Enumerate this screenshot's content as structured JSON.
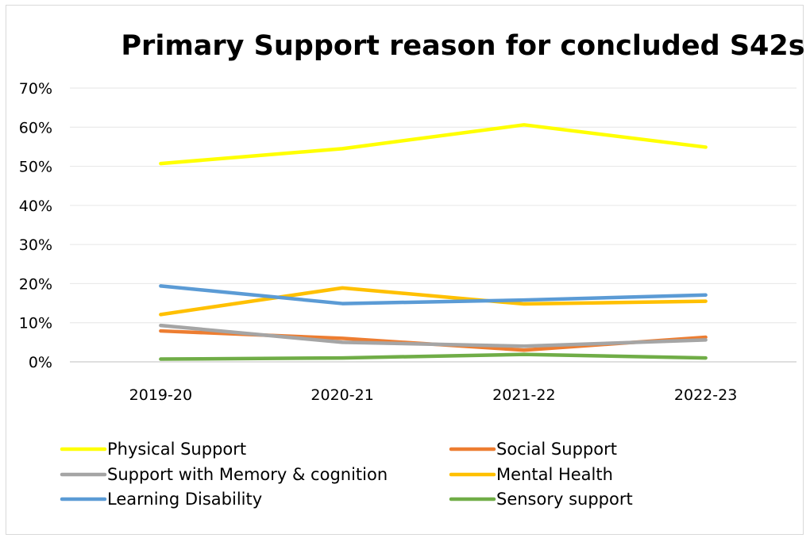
{
  "chart_data": {
    "type": "line",
    "title": "Primary Support reason for concluded S42s",
    "categories": [
      "2019-20",
      "2020-21",
      "2021-22",
      "2022-23"
    ],
    "y_tick_labels": [
      "0%",
      "10%",
      "20%",
      "30%",
      "40%",
      "50%",
      "60%",
      "70%"
    ],
    "ylim": [
      0,
      70
    ],
    "grid": true,
    "legend_position": "bottom",
    "series": [
      {
        "name": "Physical Support",
        "color": "#FFFF00",
        "values": [
          50.7,
          54.5,
          60.6,
          54.9
        ]
      },
      {
        "name": "Social Support",
        "color": "#ED7D31",
        "values": [
          7.9,
          6.0,
          3.0,
          6.3
        ]
      },
      {
        "name": "Support with Memory & cognition",
        "color": "#A5A5A5",
        "values": [
          9.3,
          5.0,
          4.0,
          5.6
        ]
      },
      {
        "name": "Mental Health",
        "color": "#FFC000",
        "values": [
          12.1,
          18.9,
          14.8,
          15.5
        ]
      },
      {
        "name": "Learning Disability",
        "color": "#5B9BD5",
        "values": [
          19.4,
          14.9,
          15.8,
          17.1
        ]
      },
      {
        "name": "Sensory support",
        "color": "#70AD47",
        "values": [
          0.7,
          1.0,
          1.9,
          1.0
        ]
      }
    ]
  }
}
